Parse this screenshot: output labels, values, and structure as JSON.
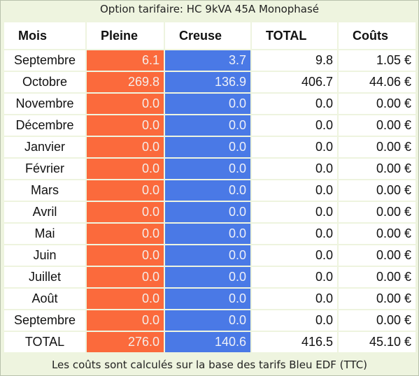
{
  "header": {
    "title": "Option tarifaire: HC 9kVA 45A Monophasé"
  },
  "table": {
    "columns": [
      "Mois",
      "Pleine",
      "Creuse",
      "TOTAL",
      "Coûts"
    ],
    "rows": [
      [
        "Septembre",
        "6.1",
        "3.7",
        "9.8",
        "1.05 €"
      ],
      [
        "Octobre",
        "269.8",
        "136.9",
        "406.7",
        "44.06 €"
      ],
      [
        "Novembre",
        "0.0",
        "0.0",
        "0.0",
        "0.00 €"
      ],
      [
        "Décembre",
        "0.0",
        "0.0",
        "0.0",
        "0.00 €"
      ],
      [
        "Janvier",
        "0.0",
        "0.0",
        "0.0",
        "0.00 €"
      ],
      [
        "Février",
        "0.0",
        "0.0",
        "0.0",
        "0.00 €"
      ],
      [
        "Mars",
        "0.0",
        "0.0",
        "0.0",
        "0.00 €"
      ],
      [
        "Avril",
        "0.0",
        "0.0",
        "0.0",
        "0.00 €"
      ],
      [
        "Mai",
        "0.0",
        "0.0",
        "0.0",
        "0.00 €"
      ],
      [
        "Juin",
        "0.0",
        "0.0",
        "0.0",
        "0.00 €"
      ],
      [
        "Juillet",
        "0.0",
        "0.0",
        "0.0",
        "0.00 €"
      ],
      [
        "Août",
        "0.0",
        "0.0",
        "0.0",
        "0.00 €"
      ],
      [
        "Septembre",
        "0.0",
        "0.0",
        "0.0",
        "0.00 €"
      ],
      [
        "TOTAL",
        "276.0",
        "140.6",
        "416.5",
        "45.10 €"
      ]
    ]
  },
  "footer": {
    "note": "Les coûts sont calculés sur la base des tarifs Bleu EDF (TTC)"
  }
}
